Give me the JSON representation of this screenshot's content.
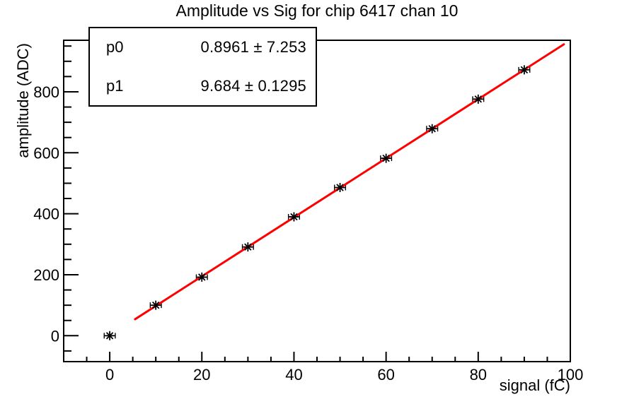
{
  "title": "Amplitude vs Sig for chip 6417 chan 10",
  "stats_box": {
    "rows": [
      {
        "param": "p0",
        "value": "0.8961 ± 7.253"
      },
      {
        "param": "p1",
        "value": "9.684 ± 0.1295"
      }
    ]
  },
  "axes": {
    "x_title": "signal (fC)",
    "y_title": "amplitude (ADC)"
  },
  "chart_data": {
    "type": "scatter",
    "title": "Amplitude vs Sig for chip 6417 chan 10",
    "xlabel": "signal (fC)",
    "ylabel": "amplitude (ADC)",
    "xlim": [
      -10,
      100
    ],
    "ylim": [
      -85,
      969
    ],
    "grid": false,
    "x_major_ticks": [
      0,
      20,
      40,
      60,
      80,
      100
    ],
    "x_tick_labels": [
      "0",
      "20",
      "40",
      "60",
      "80",
      "100"
    ],
    "x_minor_step": 5,
    "y_major_ticks": [
      0,
      200,
      400,
      600,
      800
    ],
    "y_tick_labels": [
      "0",
      "200",
      "400",
      "600",
      "800"
    ],
    "y_minor_step": 50,
    "points": {
      "x": [
        0,
        10,
        20,
        30,
        40,
        50,
        60,
        70,
        80,
        90
      ],
      "y": [
        0,
        100,
        192,
        291,
        390,
        486,
        582,
        679,
        776,
        872
      ],
      "xerr": 1.2,
      "marker": "asterisk",
      "color": "#000000"
    },
    "fit": {
      "model": "pol1",
      "p0": 0.8961,
      "p0_err": 7.253,
      "p1": 9.684,
      "p1_err": 0.1295,
      "x_range": [
        5.5,
        98.6
      ],
      "color": "#ff0000",
      "line_width": 3
    }
  }
}
